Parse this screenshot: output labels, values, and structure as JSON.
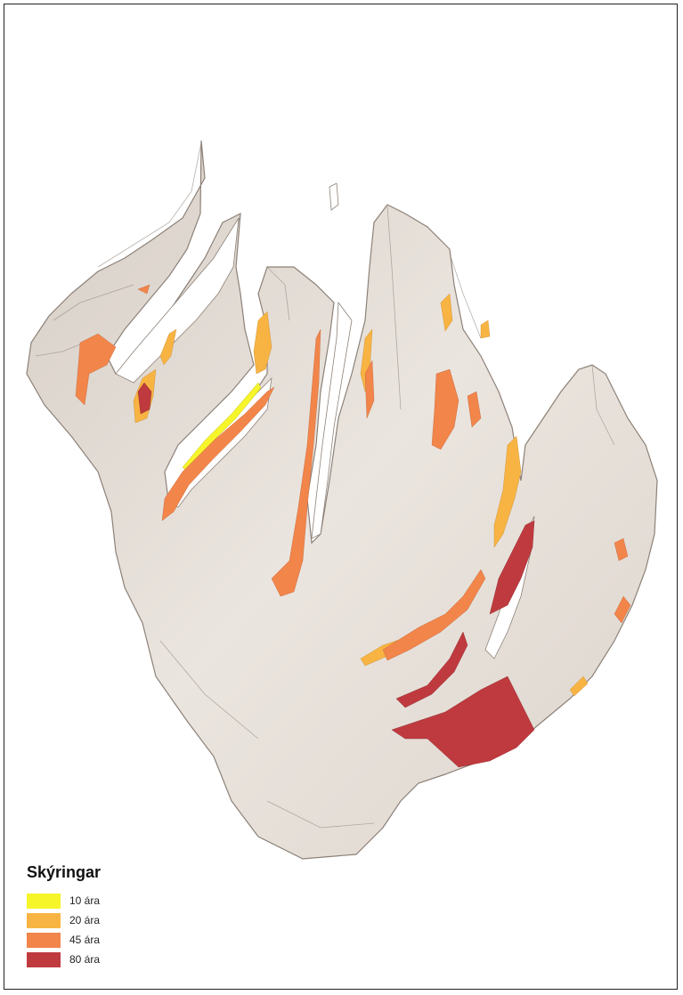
{
  "legend": {
    "title": "Skýringar",
    "items": [
      {
        "label": "10 ára",
        "color": "#f5f529"
      },
      {
        "label": "20 ára",
        "color": "#f8b443"
      },
      {
        "label": "45 ára",
        "color": "#f2854a"
      },
      {
        "label": "80 ára",
        "color": "#bf3a3e"
      }
    ]
  },
  "colors": {
    "terrain": "#e7e0d9",
    "terrain_shade": "#9a8f86",
    "background": "#ffffff"
  }
}
